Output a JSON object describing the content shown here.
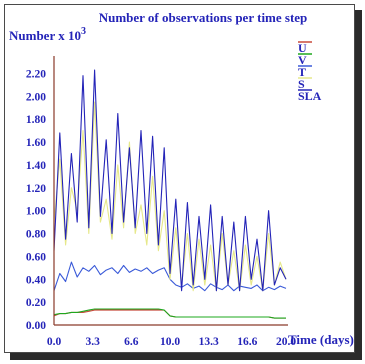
{
  "chart_data": {
    "type": "line",
    "title": "Number of observations per time step",
    "ylabel": "Number x 10",
    "ylabel_exponent": "3",
    "xlabel": "Time (days)",
    "xlim": [
      0,
      20
    ],
    "ylim": [
      0,
      2.3
    ],
    "x_ticks": [
      "0.0",
      "3.3",
      "6.6",
      "10.0",
      "13.3",
      "16.6",
      "20.0"
    ],
    "y_ticks": [
      "0.00",
      "0.20",
      "0.40",
      "0.60",
      "0.80",
      "1.00",
      "1.20",
      "1.40",
      "1.60",
      "1.80",
      "2.00",
      "2.20"
    ],
    "grid": false,
    "legend_position": "top-right",
    "colors": {
      "U": "#c84a3c",
      "V": "#1ea81e",
      "T": "#3a5ad8",
      "S": "#e6e88a",
      "SLA": "#2424b8",
      "text": "#2424b8",
      "axis": "#8a3a2a"
    },
    "series": [
      {
        "name": "U",
        "x": [
          0,
          0.5,
          1,
          1.5,
          2,
          2.5,
          3,
          3.5,
          4,
          4.5,
          5,
          5.5,
          6,
          6.5,
          7,
          7.5,
          8,
          8.5,
          9,
          9.5,
          10,
          10.5,
          11,
          11.5,
          12,
          12.5,
          13,
          13.5,
          14,
          14.5,
          15,
          15.5,
          16,
          16.5,
          17,
          17.5,
          18,
          18.5,
          19,
          19.5,
          20
        ],
        "values": [
          0.08,
          0.1,
          0.1,
          0.11,
          0.11,
          0.11,
          0.12,
          0.13,
          0.13,
          0.13,
          0.13,
          0.13,
          0.13,
          0.13,
          0.13,
          0.13,
          0.13,
          0.13,
          0.13,
          0.13,
          0.08,
          0.07,
          0.07,
          0.07,
          0.07,
          0.07,
          0.07,
          0.07,
          0.07,
          0.07,
          0.07,
          0.07,
          0.07,
          0.07,
          0.07,
          0.07,
          0.07,
          0.07,
          0.06,
          0.06,
          0.06
        ]
      },
      {
        "name": "V",
        "x": [
          0,
          0.5,
          1,
          1.5,
          2,
          2.5,
          3,
          3.5,
          4,
          4.5,
          5,
          5.5,
          6,
          6.5,
          7,
          7.5,
          8,
          8.5,
          9,
          9.5,
          10,
          10.5,
          11,
          11.5,
          12,
          12.5,
          13,
          13.5,
          14,
          14.5,
          15,
          15.5,
          16,
          16.5,
          17,
          17.5,
          18,
          18.5,
          19,
          19.5,
          20
        ],
        "values": [
          0.09,
          0.1,
          0.1,
          0.11,
          0.11,
          0.12,
          0.13,
          0.14,
          0.14,
          0.14,
          0.14,
          0.14,
          0.14,
          0.14,
          0.14,
          0.14,
          0.14,
          0.14,
          0.14,
          0.13,
          0.08,
          0.07,
          0.07,
          0.07,
          0.07,
          0.07,
          0.07,
          0.07,
          0.07,
          0.07,
          0.07,
          0.07,
          0.07,
          0.07,
          0.07,
          0.07,
          0.07,
          0.07,
          0.06,
          0.06,
          0.06
        ]
      },
      {
        "name": "T",
        "x": [
          0,
          0.5,
          1,
          1.5,
          2,
          2.5,
          3,
          3.5,
          4,
          4.5,
          5,
          5.5,
          6,
          6.5,
          7,
          7.5,
          8,
          8.5,
          9,
          9.5,
          10,
          10.5,
          11,
          11.5,
          12,
          12.5,
          13,
          13.5,
          14,
          14.5,
          15,
          15.5,
          16,
          16.5,
          17,
          17.5,
          18,
          18.5,
          19,
          19.5,
          20
        ],
        "values": [
          0.3,
          0.45,
          0.38,
          0.55,
          0.42,
          0.5,
          0.47,
          0.52,
          0.44,
          0.48,
          0.5,
          0.45,
          0.52,
          0.46,
          0.49,
          0.47,
          0.5,
          0.45,
          0.48,
          0.5,
          0.4,
          0.35,
          0.33,
          0.36,
          0.32,
          0.34,
          0.3,
          0.36,
          0.33,
          0.31,
          0.35,
          0.3,
          0.34,
          0.33,
          0.32,
          0.35,
          0.3,
          0.33,
          0.31,
          0.34,
          0.32
        ]
      },
      {
        "name": "S",
        "x": [
          0,
          0.5,
          1,
          1.5,
          2,
          2.5,
          3,
          3.5,
          4,
          4.5,
          5,
          5.5,
          6,
          6.5,
          7,
          7.5,
          8,
          8.5,
          9,
          9.5,
          10,
          10.5,
          11,
          11.5,
          12,
          12.5,
          13,
          13.5,
          14,
          14.5,
          15,
          15.5,
          16,
          16.5,
          17,
          17.5,
          18,
          18.5,
          19,
          19.5,
          20
        ],
        "values": [
          0.9,
          1.45,
          0.7,
          1.2,
          1.0,
          1.7,
          0.8,
          1.95,
          0.9,
          1.1,
          0.75,
          1.4,
          0.85,
          1.6,
          0.8,
          1.05,
          0.7,
          1.3,
          0.65,
          1.0,
          0.4,
          0.85,
          0.35,
          0.8,
          0.3,
          0.75,
          0.35,
          0.7,
          0.3,
          0.8,
          0.35,
          0.65,
          0.3,
          0.7,
          0.35,
          0.6,
          0.3,
          0.8,
          0.35,
          0.55,
          0.4
        ]
      },
      {
        "name": "SLA",
        "x": [
          0,
          0.5,
          1,
          1.5,
          2,
          2.5,
          3,
          3.5,
          4,
          4.5,
          5,
          5.5,
          6,
          6.5,
          7,
          7.5,
          8,
          8.5,
          9,
          9.5,
          10,
          10.5,
          11,
          11.5,
          12,
          12.5,
          13,
          13.5,
          14,
          14.5,
          15,
          15.5,
          16,
          16.5,
          17,
          17.5,
          18,
          18.5,
          19,
          19.5,
          20
        ],
        "values": [
          0.65,
          1.68,
          0.75,
          1.5,
          0.9,
          2.18,
          0.85,
          2.23,
          0.95,
          1.62,
          0.8,
          1.85,
          0.9,
          1.55,
          0.85,
          1.7,
          0.8,
          1.65,
          0.7,
          1.55,
          0.45,
          1.1,
          0.3,
          1.07,
          0.35,
          0.95,
          0.4,
          1.05,
          0.3,
          0.95,
          0.35,
          0.9,
          0.3,
          0.95,
          0.4,
          0.75,
          0.3,
          1.0,
          0.35,
          0.5,
          0.4
        ]
      }
    ]
  }
}
